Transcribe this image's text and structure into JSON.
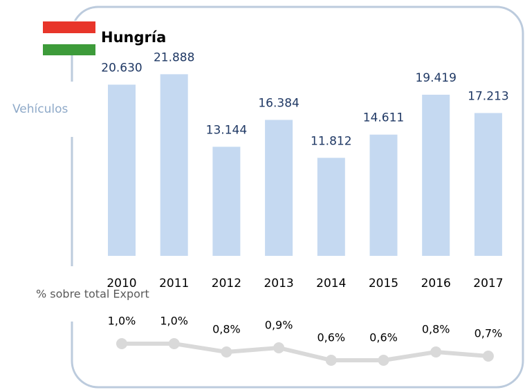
{
  "chart_data": [
    {
      "type": "bar",
      "title": "Hungría",
      "y_label": "Vehículos",
      "categories": [
        "2010",
        "2011",
        "2012",
        "2013",
        "2014",
        "2015",
        "2016",
        "2017"
      ],
      "values": [
        20630,
        21888,
        13144,
        16384,
        11812,
        14611,
        19419,
        17213
      ],
      "value_labels": [
        "20.630",
        "21.888",
        "13.144",
        "16.384",
        "11.812",
        "14.611",
        "19.419",
        "17.213"
      ],
      "color": "#c5d9f1",
      "ylim": [
        0,
        25000
      ]
    },
    {
      "type": "line",
      "title": "% sobre total Export",
      "values": [
        1.0,
        1.0,
        0.8,
        0.9,
        0.6,
        0.6,
        0.8,
        0.7
      ],
      "value_labels": [
        "1,0%",
        "1,0%",
        "0,8%",
        "0,9%",
        "0,6%",
        "0,6%",
        "0,8%",
        "0,7%"
      ],
      "color": "#d9d9d9",
      "ylim": [
        0,
        1.2
      ]
    }
  ]
}
